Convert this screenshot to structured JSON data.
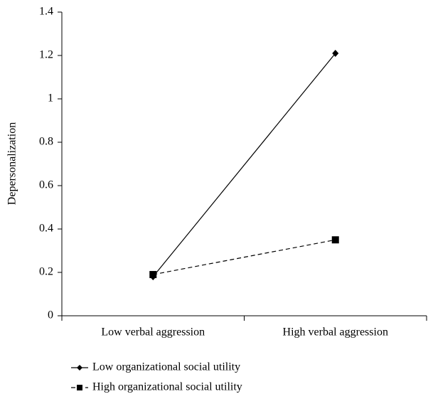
{
  "chart_data": {
    "type": "line",
    "y_label": "Depersonalization",
    "categories": [
      "Low verbal aggression",
      "High verbal aggression"
    ],
    "series": [
      {
        "name": "Low organizational social utility",
        "color": "#000000",
        "line_style": "solid",
        "marker": "diamond",
        "values": [
          0.18,
          1.21
        ]
      },
      {
        "name": "High organizational social utility",
        "color": "#000000",
        "line_style": "dashed",
        "marker": "square",
        "values": [
          0.19,
          0.35
        ]
      }
    ],
    "ylim": [
      0,
      1.4
    ],
    "yticks": [
      0,
      0.2,
      0.4,
      0.6,
      0.8,
      1,
      1.2,
      1.4
    ],
    "grid": false,
    "legend": "bottom"
  }
}
